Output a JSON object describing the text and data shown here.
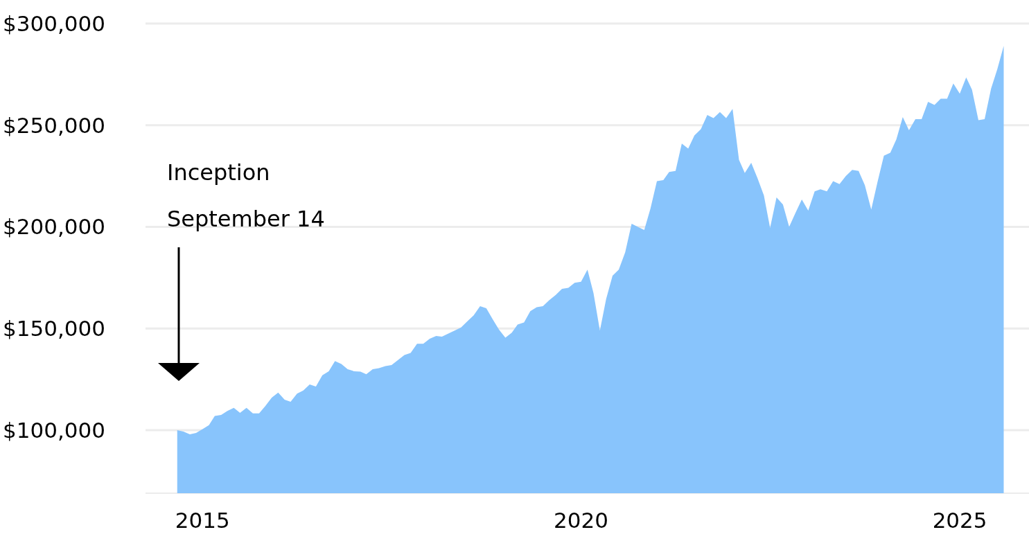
{
  "chart_data": {
    "type": "area",
    "x": [
      "2014-09",
      "2014-10",
      "2014-11",
      "2014-12",
      "2015-01",
      "2015-02",
      "2015-03",
      "2015-04",
      "2015-05",
      "2015-06",
      "2015-07",
      "2015-08",
      "2015-09",
      "2015-10",
      "2015-11",
      "2015-12",
      "2016-01",
      "2016-02",
      "2016-03",
      "2016-04",
      "2016-05",
      "2016-06",
      "2016-07",
      "2016-08",
      "2016-09",
      "2016-10",
      "2016-11",
      "2016-12",
      "2017-01",
      "2017-02",
      "2017-03",
      "2017-04",
      "2017-05",
      "2017-06",
      "2017-07",
      "2017-08",
      "2017-09",
      "2017-10",
      "2017-11",
      "2017-12",
      "2018-01",
      "2018-02",
      "2018-03",
      "2018-04",
      "2018-05",
      "2018-06",
      "2018-07",
      "2018-08",
      "2018-09",
      "2018-10",
      "2018-11",
      "2018-12",
      "2019-01",
      "2019-02",
      "2019-03",
      "2019-04",
      "2019-05",
      "2019-06",
      "2019-07",
      "2019-08",
      "2019-09",
      "2019-10",
      "2019-11",
      "2019-12",
      "2020-01",
      "2020-02",
      "2020-03",
      "2020-04",
      "2020-05",
      "2020-06",
      "2020-07",
      "2020-08",
      "2020-09",
      "2020-10",
      "2020-11",
      "2020-12",
      "2021-01",
      "2021-02",
      "2021-03",
      "2021-04",
      "2021-05",
      "2021-06",
      "2021-07",
      "2021-08",
      "2021-09",
      "2021-10",
      "2021-11",
      "2021-12",
      "2022-01",
      "2022-02",
      "2022-03",
      "2022-04",
      "2022-05",
      "2022-06",
      "2022-07",
      "2022-08",
      "2022-09",
      "2022-10",
      "2022-11",
      "2022-12",
      "2023-01",
      "2023-02",
      "2023-03",
      "2023-04",
      "2023-05",
      "2023-06",
      "2023-07",
      "2023-08",
      "2023-09",
      "2023-10",
      "2023-11",
      "2023-12",
      "2024-01",
      "2024-02",
      "2024-03",
      "2024-04",
      "2024-05",
      "2024-06",
      "2024-07",
      "2024-08",
      "2024-09",
      "2024-10",
      "2024-11",
      "2024-12",
      "2025-01",
      "2025-02",
      "2025-03",
      "2025-04",
      "2025-05",
      "2025-06",
      "2025-07",
      "2025-08"
    ],
    "series": [
      {
        "color": "#88c4fc",
        "values": [
          100000,
          99300,
          98000,
          98600,
          100500,
          102500,
          107000,
          107500,
          109500,
          111000,
          108500,
          111000,
          108300,
          108300,
          112000,
          116000,
          118500,
          115000,
          114000,
          118000,
          119500,
          122500,
          121500,
          127000,
          129000,
          134000,
          132500,
          130000,
          129000,
          128800,
          127500,
          130000,
          130500,
          131500,
          132000,
          134500,
          137000,
          138000,
          142500,
          142500,
          145000,
          146300,
          146000,
          147500,
          149000,
          150500,
          153500,
          156500,
          161000,
          160000,
          154500,
          149500,
          145500,
          148000,
          152000,
          153000,
          158500,
          160500,
          161000,
          164000,
          166500,
          169500,
          170000,
          172500,
          173000,
          179000,
          167500,
          149000,
          164500,
          176000,
          179000,
          187500,
          201500,
          200000,
          198500,
          209000,
          222500,
          223000,
          227000,
          227500,
          241000,
          238500,
          245000,
          248000,
          255000,
          253500,
          256500,
          253500,
          258000,
          233000,
          226500,
          231500,
          224000,
          215500,
          199500,
          214500,
          211000,
          200000,
          207000,
          213500,
          208000,
          217500,
          218500,
          217500,
          222500,
          221000,
          225000,
          228000,
          227500,
          220500,
          208500,
          222000,
          235000,
          236500,
          243000,
          254000,
          247500,
          253000,
          253000,
          261500,
          260000,
          263000,
          263000,
          270500,
          265500,
          273500,
          267500,
          252500,
          253000,
          268000,
          277500,
          289000
        ]
      }
    ],
    "xlim": [
      "2014-04",
      "2025-12"
    ],
    "xticks": [
      "2015",
      "2020",
      "2025"
    ],
    "ylim": [
      69000,
      300000
    ],
    "yticks": [
      {
        "value": 100000,
        "label": "$100,000"
      },
      {
        "value": 150000,
        "label": "$150,000"
      },
      {
        "value": 200000,
        "label": "$200,000"
      },
      {
        "value": 250000,
        "label": "$250,000"
      },
      {
        "value": 300000,
        "label": "$300,000"
      }
    ],
    "grid": "y",
    "annotations": [
      "Inception",
      "September 14"
    ]
  }
}
